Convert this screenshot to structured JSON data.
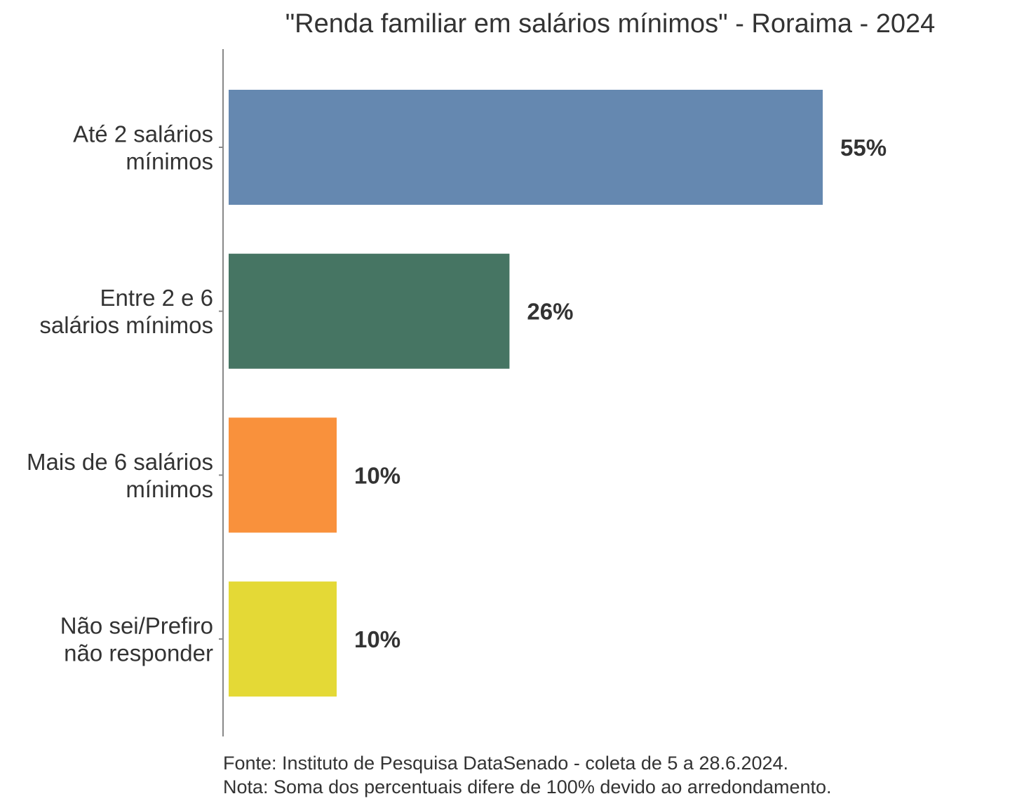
{
  "chart_data": {
    "type": "bar",
    "orientation": "horizontal",
    "title": "\"Renda familiar em salários mínimos\" - Roraima - 2024",
    "categories": [
      [
        "Até 2 salários",
        "mínimos"
      ],
      [
        "Entre 2 e 6",
        "salários mínimos"
      ],
      [
        "Mais de 6 salários",
        "mínimos"
      ],
      [
        "Não sei/Prefiro",
        "não responder"
      ]
    ],
    "values": [
      55,
      26,
      10,
      10
    ],
    "value_labels": [
      "55%",
      "26%",
      "10%",
      "10%"
    ],
    "colors": [
      "#6588b0",
      "#467563",
      "#f9913c",
      "#e4d936"
    ],
    "xlim": [
      0,
      100
    ],
    "grid": false,
    "legend": "none"
  },
  "notes": [
    "Fonte: Instituto de Pesquisa DataSenado - coleta de 5 a 28.6.2024.",
    "Nota: Soma dos percentuais difere de 100% devido ao arredondamento."
  ]
}
